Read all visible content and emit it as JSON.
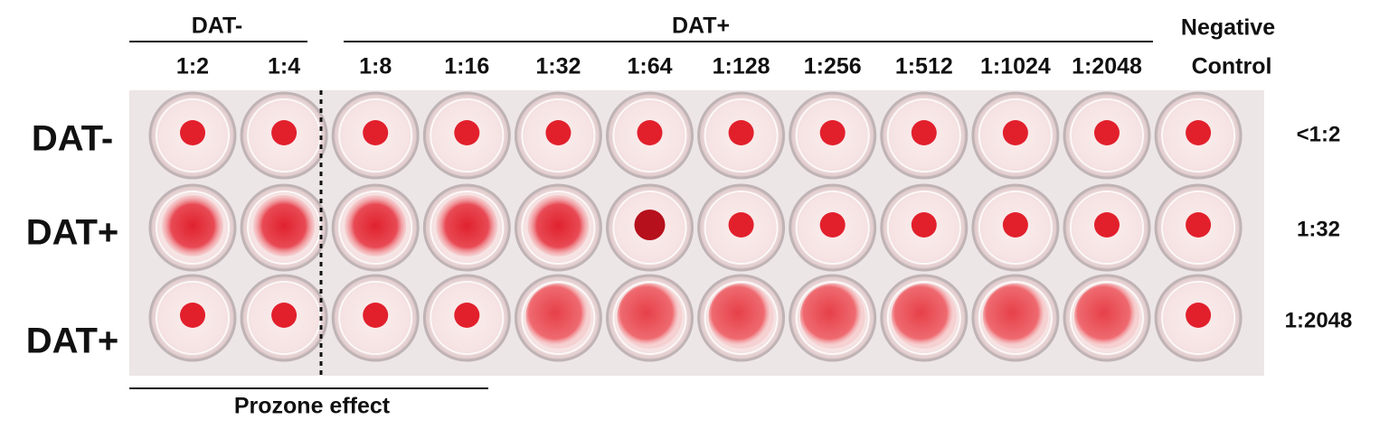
{
  "header": {
    "groups": [
      "DAT-",
      "DAT+"
    ],
    "negative_control": [
      "Negative",
      "Control"
    ],
    "dilutions": [
      "1:2",
      "1:4",
      "1:8",
      "1:16",
      "1:32",
      "1:64",
      "1:128",
      "1:256",
      "1:512",
      "1:1024",
      "1:2048"
    ]
  },
  "rows": [
    {
      "label": "DAT-",
      "titer": "<1:2"
    },
    {
      "label": "DAT+",
      "titer": "1:32"
    },
    {
      "label": "DAT+",
      "titer": "1:2048"
    }
  ],
  "footer": "Prozone effect"
}
